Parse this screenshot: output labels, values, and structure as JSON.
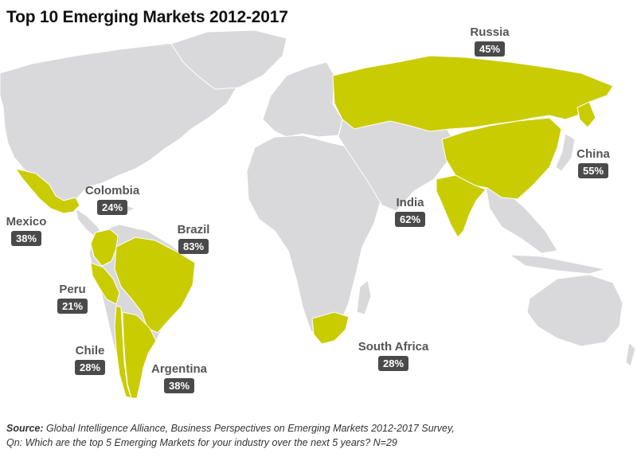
{
  "title": "Top 10 Emerging Markets 2012-2017",
  "colors": {
    "highlight": "#c8cc00",
    "land": "#d9d9db",
    "badge": "#4a4a4a"
  },
  "markets": [
    {
      "name": "Russia",
      "value": "45%"
    },
    {
      "name": "China",
      "value": "55%"
    },
    {
      "name": "India",
      "value": "62%"
    },
    {
      "name": "Colombia",
      "value": "24%"
    },
    {
      "name": "Mexico",
      "value": "38%"
    },
    {
      "name": "Brazil",
      "value": "83%"
    },
    {
      "name": "Peru",
      "value": "21%"
    },
    {
      "name": "Chile",
      "value": "28%"
    },
    {
      "name": "Argentina",
      "value": "38%"
    },
    {
      "name": "South Africa",
      "value": "28%"
    }
  ],
  "footer": {
    "source_label": "Source:",
    "source_text": "Global Intelligence Alliance, Business Perspectives on Emerging Markets 2012-2017 Survey,",
    "question": "Qn: Which are the top 5 Emerging Markets for your industry over the next 5 years? N=29"
  }
}
